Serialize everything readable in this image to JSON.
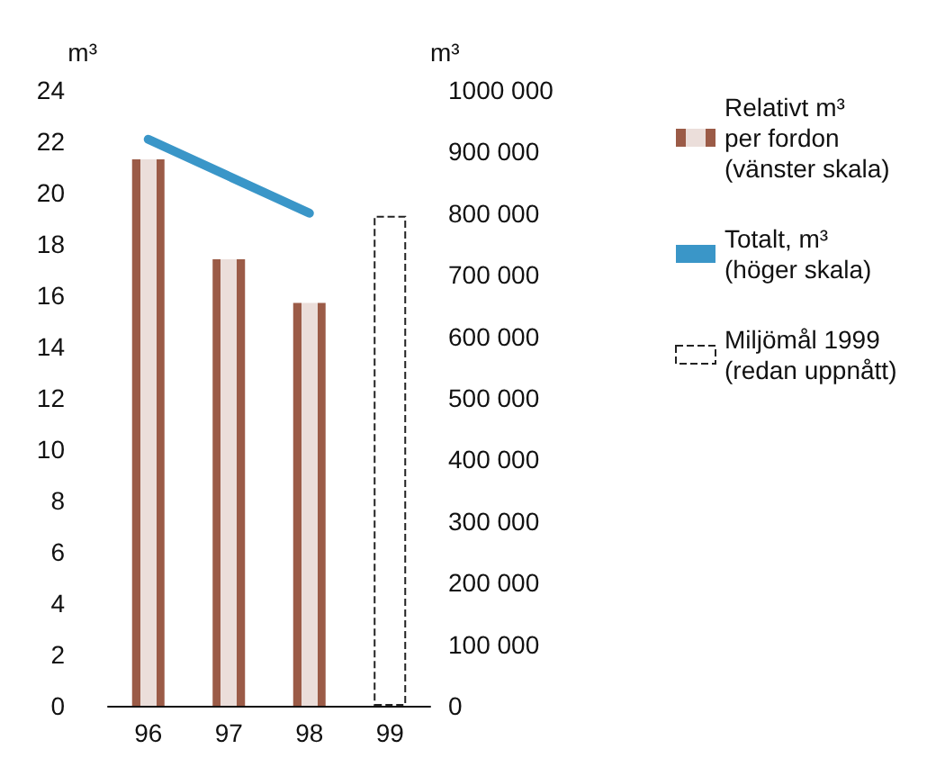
{
  "chart_data": {
    "type": "bar",
    "categories": [
      "96",
      "97",
      "98",
      "99"
    ],
    "series": [
      {
        "name": "Relativt m³\nper fordon\n(vänster skala)",
        "color": "#9b5b47",
        "values": [
          21.3,
          17.4,
          15.7,
          null
        ]
      },
      {
        "name": "Totalt, m³\n(höger skala)",
        "type": "line",
        "axis": "y2",
        "color": "#3a96c8",
        "values": [
          920000,
          860000,
          800000,
          null
        ]
      },
      {
        "name": "Miljömål 1999\n(redan uppnått)",
        "color": "#222222",
        "line_style": "dashed",
        "values": [
          null,
          null,
          null,
          19.1
        ]
      }
    ],
    "ylabel": "m³",
    "y2label": "m³",
    "ylim": [
      0,
      24
    ],
    "yticks": [
      0,
      2,
      4,
      6,
      8,
      10,
      12,
      14,
      16,
      18,
      20,
      22,
      24
    ],
    "y2lim": [
      0,
      1000000
    ],
    "y2ticks": [
      0,
      {
        "value": 100000,
        "label": "100 000"
      },
      {
        "value": 200000,
        "label": "200 000"
      },
      {
        "value": 300000,
        "label": "300 000"
      },
      {
        "value": 400000,
        "label": "400 000"
      },
      {
        "value": 500000,
        "label": "500 000"
      },
      {
        "value": 600000,
        "label": "600 000"
      },
      {
        "value": 700000,
        "label": "700 000"
      },
      {
        "value": 800000,
        "label": "800 000"
      },
      {
        "value": 900000,
        "label": "900 000"
      },
      {
        "value": 1000000,
        "label": "1000 000"
      }
    ],
    "marker": "none",
    "grid": false,
    "legend": "right"
  }
}
